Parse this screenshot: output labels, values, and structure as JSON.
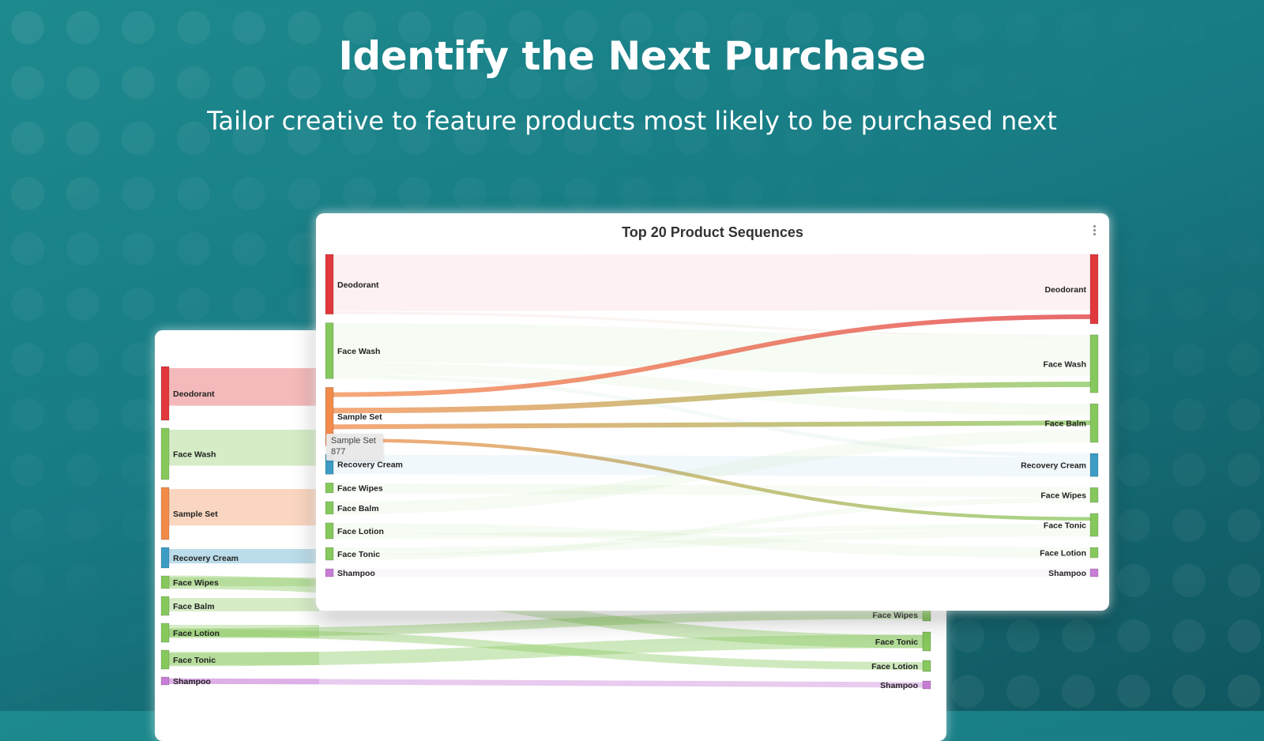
{
  "hero": {
    "headline": "Identify the Next Purchase",
    "subhead": "Tailor creative to feature products most likely to be purchased next"
  },
  "colors": {
    "deodorant": "#e0383c",
    "face_wash": "#86c85c",
    "sample_set": "#f28a4a",
    "recovery_cream": "#3d9cc4",
    "face_wipes": "#86c85c",
    "face_balm": "#86c85c",
    "face_lotion": "#86c85c",
    "face_tonic": "#86c85c",
    "shampoo": "#c77dd6"
  },
  "chart_data": [
    {
      "type": "sankey",
      "title": "Top 20 Product Sequences",
      "nodes_left": [
        {
          "name": "Deodorant",
          "color": "#e0383c"
        },
        {
          "name": "Face Wash",
          "color": "#86c85c"
        },
        {
          "name": "Sample Set",
          "color": "#f28a4a"
        },
        {
          "name": "Recovery Cream",
          "color": "#3d9cc4"
        },
        {
          "name": "Face Wipes",
          "color": "#86c85c"
        },
        {
          "name": "Face Balm",
          "color": "#86c85c"
        },
        {
          "name": "Face Lotion",
          "color": "#86c85c"
        },
        {
          "name": "Face Tonic",
          "color": "#86c85c"
        },
        {
          "name": "Shampoo",
          "color": "#c77dd6"
        }
      ],
      "nodes_right": [
        {
          "name": "Deodorant",
          "color": "#e0383c"
        },
        {
          "name": "Face Wash",
          "color": "#86c85c"
        },
        {
          "name": "Face Balm",
          "color": "#86c85c"
        },
        {
          "name": "Recovery Cream",
          "color": "#3d9cc4"
        },
        {
          "name": "Face Wipes",
          "color": "#86c85c"
        },
        {
          "name": "Face Tonic",
          "color": "#86c85c"
        },
        {
          "name": "Face Lotion",
          "color": "#86c85c"
        },
        {
          "name": "Shampoo",
          "color": "#c77dd6"
        }
      ],
      "links": [
        {
          "from": "Deodorant",
          "to": "Deodorant",
          "value": 860,
          "highlight": false
        },
        {
          "from": "Deodorant",
          "to": "Face Wash",
          "value": 40,
          "highlight": false
        },
        {
          "from": "Face Wash",
          "to": "Face Wash",
          "value": 600,
          "highlight": false
        },
        {
          "from": "Face Wash",
          "to": "Face Balm",
          "value": 180,
          "highlight": false
        },
        {
          "from": "Face Wash",
          "to": "Recovery Cream",
          "value": 60,
          "highlight": false
        },
        {
          "from": "Sample Set",
          "to": "Deodorant",
          "value": 220,
          "highlight": true
        },
        {
          "from": "Sample Set",
          "to": "Face Wash",
          "value": 260,
          "highlight": true
        },
        {
          "from": "Sample Set",
          "to": "Face Balm",
          "value": 230,
          "highlight": true
        },
        {
          "from": "Sample Set",
          "to": "Face Tonic",
          "value": 167,
          "highlight": true
        },
        {
          "from": "Recovery Cream",
          "to": "Recovery Cream",
          "value": 300,
          "highlight": false
        },
        {
          "from": "Face Wipes",
          "to": "Face Wipes",
          "value": 150,
          "highlight": false
        },
        {
          "from": "Face Balm",
          "to": "Face Balm",
          "value": 190,
          "highlight": false
        },
        {
          "from": "Face Lotion",
          "to": "Face Lotion",
          "value": 160,
          "highlight": false
        },
        {
          "from": "Face Lotion",
          "to": "Face Tonic",
          "value": 80,
          "highlight": false
        },
        {
          "from": "Face Tonic",
          "to": "Face Tonic",
          "value": 110,
          "highlight": false
        },
        {
          "from": "Face Tonic",
          "to": "Face Wipes",
          "value": 80,
          "highlight": false
        },
        {
          "from": "Shampoo",
          "to": "Shampoo",
          "value": 100,
          "highlight": false
        }
      ],
      "tooltip": {
        "label": "Sample Set",
        "value": "877"
      }
    },
    {
      "type": "sankey",
      "title": "",
      "nodes_left": [
        {
          "name": "Deodorant",
          "color": "#e0383c"
        },
        {
          "name": "Face Wash",
          "color": "#86c85c"
        },
        {
          "name": "Sample Set",
          "color": "#f28a4a"
        },
        {
          "name": "Recovery Cream",
          "color": "#3d9cc4"
        },
        {
          "name": "Face Wipes",
          "color": "#86c85c"
        },
        {
          "name": "Face Balm",
          "color": "#86c85c"
        },
        {
          "name": "Face Lotion",
          "color": "#86c85c"
        },
        {
          "name": "Face Tonic",
          "color": "#86c85c"
        },
        {
          "name": "Shampoo",
          "color": "#c77dd6"
        }
      ],
      "nodes_right": [
        {
          "name": "Face Wipes",
          "color": "#86c85c"
        },
        {
          "name": "Face Tonic",
          "color": "#86c85c"
        },
        {
          "name": "Face Lotion",
          "color": "#86c85c"
        },
        {
          "name": "Shampoo",
          "color": "#c77dd6"
        }
      ]
    }
  ]
}
